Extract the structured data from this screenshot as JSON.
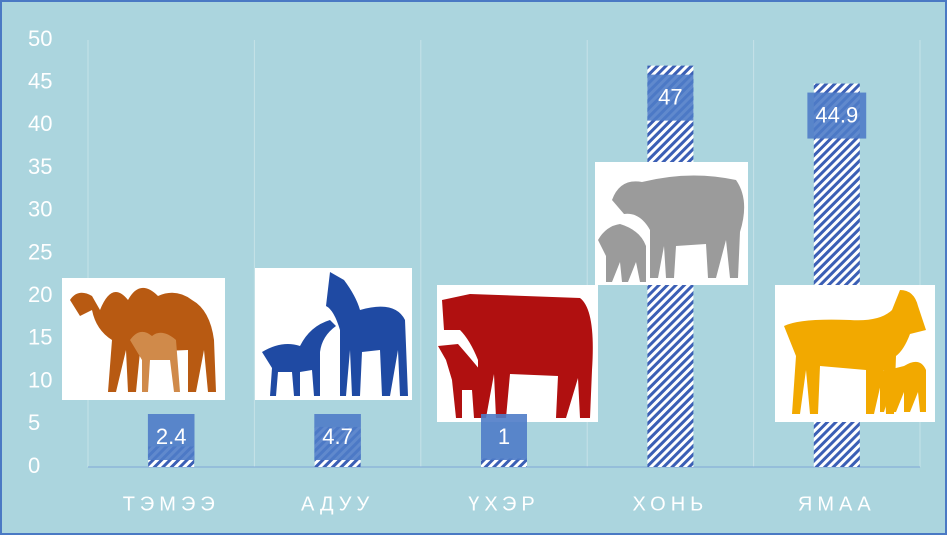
{
  "chart_data": {
    "type": "bar",
    "categories": [
      "ТЭМЭЭ",
      "АДУУ",
      "ҮХЭР",
      "ХОНЬ",
      "ЯМАА"
    ],
    "values": [
      2.4,
      4.7,
      1,
      47,
      44.9
    ],
    "color": "#3b5fb5",
    "label_color": "#4f7cc8",
    "ylim": [
      0,
      50
    ],
    "yticks": [
      0,
      5,
      10,
      15,
      20,
      25,
      30,
      35,
      40,
      45,
      50
    ],
    "grid": true
  }
}
